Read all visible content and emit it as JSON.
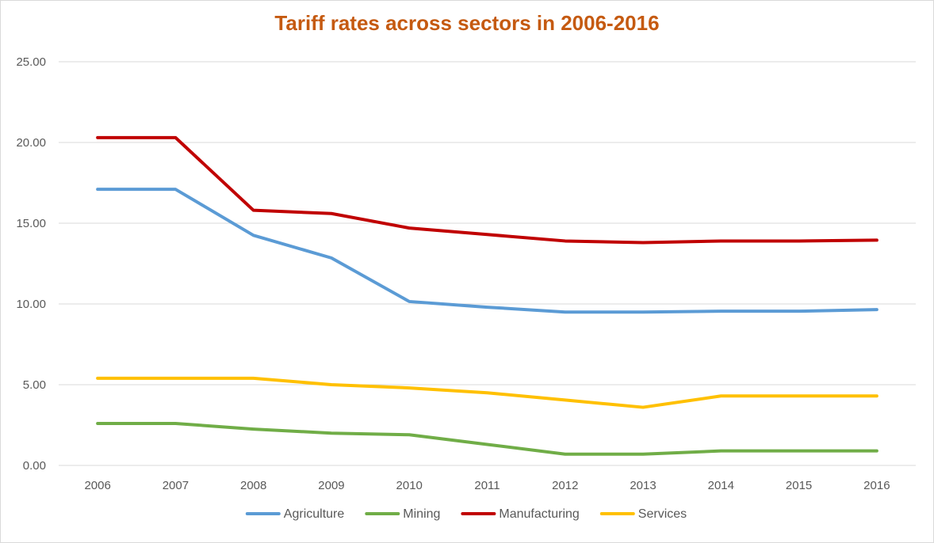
{
  "chart_data": {
    "type": "line",
    "title": "Tariff rates across sectors in 2006-2016",
    "xlabel": "",
    "ylabel": "",
    "ylim": [
      0,
      25
    ],
    "y_ticks": [
      "0.00",
      "5.00",
      "10.00",
      "15.00",
      "20.00",
      "25.00"
    ],
    "x": [
      "2006",
      "2007",
      "2008",
      "2009",
      "2010",
      "2011",
      "2012",
      "2013",
      "2014",
      "2015",
      "2016"
    ],
    "grid": "horizontal",
    "legend_position": "bottom",
    "series": [
      {
        "name": "Agriculture",
        "color": "#5b9bd5",
        "values": [
          17.1,
          17.1,
          14.25,
          12.85,
          10.15,
          9.8,
          9.5,
          9.5,
          9.55,
          9.55,
          9.65
        ]
      },
      {
        "name": "Mining",
        "color": "#70ad47",
        "values": [
          2.6,
          2.6,
          2.25,
          2.0,
          1.9,
          1.3,
          0.7,
          0.7,
          0.9,
          0.9,
          0.9
        ]
      },
      {
        "name": "Manufacturing",
        "color": "#c00000",
        "values": [
          20.3,
          20.3,
          15.8,
          15.6,
          14.7,
          14.3,
          13.9,
          13.8,
          13.9,
          13.9,
          13.95
        ]
      },
      {
        "name": "Services",
        "color": "#ffc000",
        "values": [
          5.4,
          5.4,
          5.4,
          5.0,
          4.8,
          4.5,
          4.05,
          3.6,
          4.3,
          4.3,
          4.3
        ]
      }
    ]
  }
}
